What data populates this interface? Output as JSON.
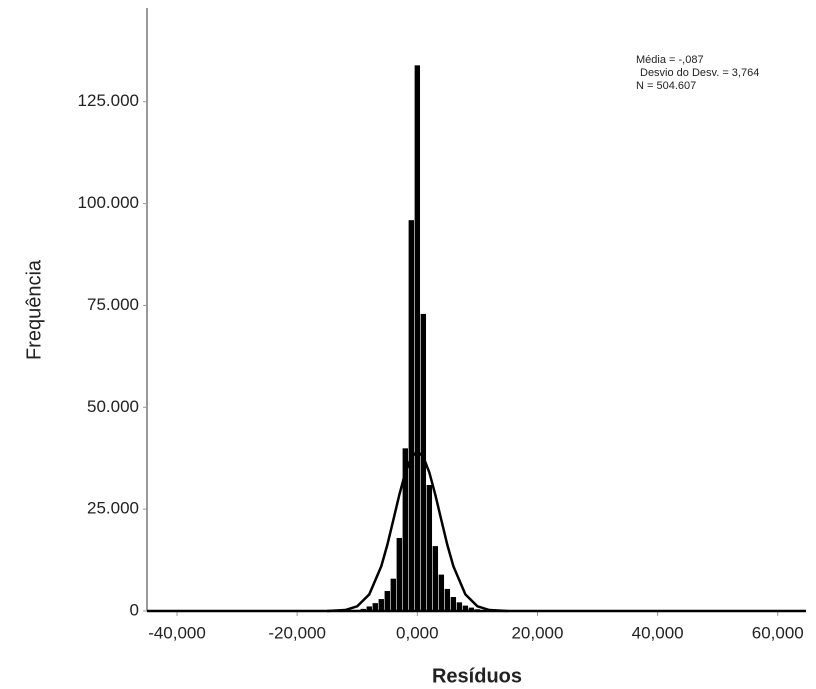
{
  "chart_data": {
    "type": "histogram",
    "x_label": "Resíduos",
    "y_label": "Frequência",
    "stats": [
      "Média = -,087",
      "Desvio do Desv. = 3,764",
      "N = 504.607"
    ],
    "bins": [
      -10.5,
      -9.5,
      -8.5,
      -7.5,
      -6.5,
      -5.5,
      -4.5,
      -3.5,
      -2.5,
      -1.5,
      -0.5,
      0.5,
      1.5,
      2.5,
      3.5,
      4.5,
      5.5,
      6.5,
      7.5,
      8.5,
      9.5,
      10.5,
      11.5,
      12.5,
      13.5
    ],
    "counts": [
      300,
      600,
      1200,
      2000,
      3000,
      5000,
      8000,
      18000,
      40000,
      96000,
      134000,
      73000,
      31000,
      16000,
      9000,
      5500,
      3500,
      2200,
      1400,
      900,
      500,
      300,
      200,
      100
    ],
    "color": "#000000",
    "normal_curve": {
      "x": [
        -15,
        -12,
        -10,
        -8,
        -6,
        -5,
        -4,
        -3,
        -2,
        -1,
        0,
        1,
        2,
        3,
        4,
        5,
        6,
        8,
        10,
        12,
        15
      ],
      "values": [
        14,
        243,
        1150,
        4080,
        11000,
        16200,
        22300,
        28500,
        34000,
        37800,
        39200,
        37800,
        34000,
        28500,
        22300,
        16200,
        11000,
        4080,
        1150,
        243,
        14
      ]
    },
    "xlim": [
      -45,
      64.7
    ],
    "xticks": [
      {
        "value": -40,
        "label": "-40,000"
      },
      {
        "value": -20,
        "label": "-20,000"
      },
      {
        "value": 0,
        "label": "0,000"
      },
      {
        "value": 20,
        "label": "20,000"
      },
      {
        "value": 40,
        "label": "40,000"
      },
      {
        "value": 60,
        "label": "60,000"
      }
    ],
    "ylim": [
      0,
      148000
    ],
    "yticks": [
      0,
      {
        "value": 25000,
        "label": "25.000"
      },
      {
        "value": 50000,
        "label": "50.000"
      },
      {
        "value": 75000,
        "label": "75.000"
      },
      {
        "value": 100000,
        "label": "100.000"
      },
      {
        "value": 125000,
        "label": "125.000"
      }
    ]
  }
}
